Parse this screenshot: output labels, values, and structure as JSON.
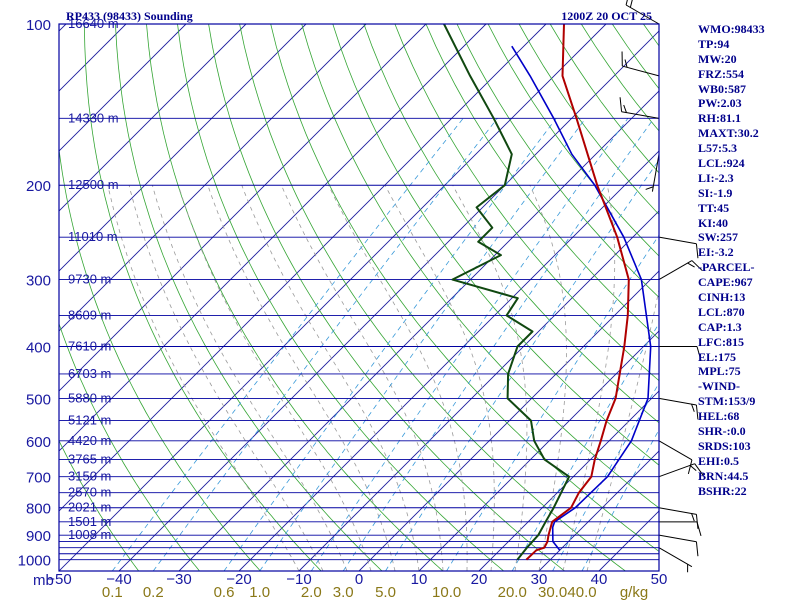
{
  "header": {
    "station": "RP433 (98433) Sounding",
    "time": "1200Z 20 OCT 25"
  },
  "colors": {
    "isobar": "#0000a0",
    "isotherm": "#1c1c9e",
    "dry_adiabat": "#35a535",
    "moist_adiabat": "#9a9a9a",
    "mixing_ratio": "#3a9ad9",
    "temperature": "#b00000",
    "dewpoint": "#104810",
    "parcel": "#0000c8",
    "label": "#1818a0",
    "mr_label": "#8a7818",
    "index": "#00008b"
  },
  "chart_data": {
    "type": "skew-t log-p sounding",
    "pressure_levels_mb": [
      100,
      200,
      300,
      400,
      500,
      600,
      700,
      800,
      900,
      1000
    ],
    "pressure_axis_label": "mb",
    "pressure_range_mb": [
      100,
      1050
    ],
    "temperature_range_c": [
      -50,
      50
    ],
    "temperature_ticks_c": [
      -50,
      -40,
      -30,
      -20,
      -10,
      0,
      10,
      20,
      30,
      40,
      50
    ],
    "height_labels": [
      {
        "p": 100,
        "label": "16640 m"
      },
      {
        "p": 150,
        "label": "14330 m"
      },
      {
        "p": 200,
        "label": "12500 m"
      },
      {
        "p": 250,
        "label": "11010 m"
      },
      {
        "p": 300,
        "label": "9730 m"
      },
      {
        "p": 350,
        "label": "8609 m"
      },
      {
        "p": 400,
        "label": "7610 m"
      },
      {
        "p": 450,
        "label": "6703 m"
      },
      {
        "p": 500,
        "label": "5880 m"
      },
      {
        "p": 550,
        "label": "5121 m"
      },
      {
        "p": 600,
        "label": "4420 m"
      },
      {
        "p": 650,
        "label": "3765 m"
      },
      {
        "p": 700,
        "label": "3150 m"
      },
      {
        "p": 750,
        "label": "2570 m"
      },
      {
        "p": 800,
        "label": "2021 m"
      },
      {
        "p": 850,
        "label": "1501 m"
      },
      {
        "p": 900,
        "label": "1008 m"
      }
    ],
    "mixing_ratio_labels_gkg": [
      "0.1",
      "0.2",
      "0.6",
      "1.0",
      "2.0",
      "3.0",
      "5.0",
      "10.0",
      "20.0",
      "30.0",
      "40.0"
    ],
    "mixing_ratio_unit": "g/kg",
    "temperature_profile": [
      [
        1000,
        26
      ],
      [
        960,
        26.1
      ],
      [
        950,
        27
      ],
      [
        925,
        26.5
      ],
      [
        900,
        25.6
      ],
      [
        850,
        24
      ],
      [
        800,
        24.8
      ],
      [
        750,
        23.6
      ],
      [
        700,
        23
      ],
      [
        650,
        20.7
      ],
      [
        600,
        18.6
      ],
      [
        550,
        16.2
      ],
      [
        500,
        14
      ],
      [
        450,
        10.6
      ],
      [
        400,
        6.8
      ],
      [
        350,
        2.2
      ],
      [
        300,
        -3.6
      ],
      [
        250,
        -12.6
      ],
      [
        200,
        -24.6
      ],
      [
        150,
        -39.2
      ],
      [
        125,
        -48.6
      ],
      [
        100,
        -57
      ]
    ],
    "dewpoint_profile": [
      [
        1000,
        24.5
      ],
      [
        950,
        24.1
      ],
      [
        900,
        23.9
      ],
      [
        850,
        22.9
      ],
      [
        800,
        21.9
      ],
      [
        700,
        19.3
      ],
      [
        650,
        12.3
      ],
      [
        600,
        7.5
      ],
      [
        550,
        3.6
      ],
      [
        500,
        -4
      ],
      [
        450,
        -8
      ],
      [
        400,
        -11
      ],
      [
        375,
        -11
      ],
      [
        350,
        -18
      ],
      [
        325,
        -19
      ],
      [
        300,
        -33
      ],
      [
        270,
        -29
      ],
      [
        255,
        -35
      ],
      [
        240,
        -35
      ],
      [
        220,
        -41
      ],
      [
        200,
        -40
      ],
      [
        175,
        -44
      ],
      [
        150,
        -53
      ],
      [
        125,
        -64
      ],
      [
        100,
        -77
      ]
    ],
    "parcel_profile": [
      [
        960,
        30
      ],
      [
        925,
        27.4
      ],
      [
        870,
        25
      ],
      [
        850,
        24.4
      ],
      [
        800,
        25.5
      ],
      [
        700,
        25.7
      ],
      [
        600,
        23.7
      ],
      [
        500,
        19.4
      ],
      [
        400,
        11.2
      ],
      [
        300,
        -1.5
      ],
      [
        250,
        -11.5
      ],
      [
        200,
        -25
      ],
      [
        175,
        -34
      ],
      [
        150,
        -43
      ],
      [
        125,
        -54
      ],
      [
        110,
        -62
      ]
    ],
    "wind_barbs": [
      {
        "p": 100,
        "dir": 300,
        "spd": 20
      },
      {
        "p": 125,
        "dir": 285,
        "spd": 15
      },
      {
        "p": 150,
        "dir": 280,
        "spd": 15
      },
      {
        "p": 175,
        "dir": 190,
        "spd": 5
      },
      {
        "p": 250,
        "dir": 100,
        "spd": 10
      },
      {
        "p": 300,
        "dir": 60,
        "spd": 15
      },
      {
        "p": 400,
        "dir": 90,
        "spd": 10
      },
      {
        "p": 500,
        "dir": 100,
        "spd": 15
      },
      {
        "p": 600,
        "dir": 120,
        "spd": 10
      },
      {
        "p": 700,
        "dir": 70,
        "spd": 15
      },
      {
        "p": 800,
        "dir": 100,
        "spd": 15
      },
      {
        "p": 850,
        "dir": 90,
        "spd": 10
      },
      {
        "p": 900,
        "dir": 100,
        "spd": 10
      },
      {
        "p": 950,
        "dir": 120,
        "spd": 5
      }
    ]
  },
  "indices": [
    "WMO:98433",
    "TP:94",
    "MW:20",
    "FRZ:554",
    "WB0:587",
    "PW:2.03",
    "RH:81.1",
    "MAXT:30.2",
    "L57:5.3",
    "LCL:924",
    "LI:-2.3",
    "SI:-1.9",
    "TT:45",
    "KI:40",
    "SW:257",
    "EI:-3.2",
    "-PARCEL-",
    "CAPE:967",
    "CINH:13",
    "LCL:870",
    "CAP:1.3",
    "LFC:815",
    "EL:175",
    "MPL:75",
    "-WIND-",
    "STM:153/9",
    "HEL:68",
    "SHR-:0.0",
    "SRDS:103",
    "EHI:0.5",
    "BRN:44.5",
    "BSHR:22"
  ]
}
